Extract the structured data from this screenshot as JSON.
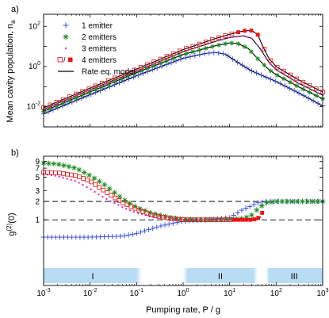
{
  "chart_data": [
    {
      "type": "scatter",
      "panel_label": "a)",
      "title": "",
      "xlabel": "",
      "ylabel": "Mean cavity population, n",
      "ylabel_subscript": "a",
      "xscale": "log",
      "yscale": "log",
      "xlim": [
        0.001,
        1000
      ],
      "ylim": [
        0.001,
        400
      ],
      "y_ticks": [
        0.01,
        1,
        100
      ],
      "y_tick_labels": [
        {
          "base": "10",
          "exp": "-2"
        },
        {
          "base": "10",
          "exp": "0"
        },
        {
          "base": "10",
          "exp": "2"
        }
      ],
      "legend_position": "top-left",
      "legend": [
        {
          "label": "1 emitter",
          "marker": "plus",
          "color": "#3344dd"
        },
        {
          "label": "2 emitters",
          "marker": "asterisk",
          "color": "#1f8a1f"
        },
        {
          "label": "3 emitters",
          "marker": "dot",
          "color": "#dd33cc"
        },
        {
          "label": "4 emitters",
          "marker": "square",
          "color": "#ee1111"
        },
        {
          "label": "Rate eq. model",
          "marker": "line",
          "color": "#000000"
        }
      ],
      "series": [
        {
          "marker": "plus",
          "color": "#3344dd",
          "x": [
            0.001,
            0.01,
            0.1,
            1,
            3,
            5,
            8,
            15,
            30,
            60,
            100,
            300,
            1000
          ],
          "y": [
            0.0045,
            0.04,
            0.35,
            2.6,
            4.5,
            5.0,
            4.2,
            1.6,
            0.6,
            0.3,
            0.18,
            0.05,
            0.011
          ]
        },
        {
          "marker": "asterisk",
          "color": "#1f8a1f",
          "x": [
            0.001,
            0.01,
            0.1,
            1,
            5,
            10,
            15,
            25,
            40,
            70,
            100,
            300,
            1000
          ],
          "y": [
            0.006,
            0.055,
            0.5,
            4,
            11,
            15,
            14,
            8,
            2.5,
            0.7,
            0.4,
            0.1,
            0.025
          ]
        },
        {
          "marker": "dot",
          "color": "#dd33cc",
          "x": [
            0.001,
            0.01,
            0.1,
            1,
            5,
            10,
            20,
            30,
            45,
            70,
            100,
            300,
            1000
          ],
          "y": [
            0.0075,
            0.07,
            0.6,
            5.5,
            18,
            28,
            34,
            25,
            8,
            1.6,
            0.7,
            0.15,
            0.038
          ]
        },
        {
          "marker": "square",
          "color": "#ee1111",
          "x": [
            0.001,
            0.01,
            0.1,
            1,
            5,
            10,
            20,
            30,
            40,
            50,
            70,
            100,
            300,
            1000
          ],
          "y": [
            0.009,
            0.085,
            0.75,
            7,
            25,
            40,
            60,
            62,
            40,
            12,
            2.5,
            1.0,
            0.22,
            0.055
          ]
        }
      ]
    },
    {
      "type": "scatter",
      "panel_label": "b)",
      "title": "",
      "xlabel": "Pumping rate, P / g",
      "ylabel": "g(2)(0)",
      "ylabel_parts": {
        "g": "g",
        "sup": "(2)",
        "tail": "(0)"
      },
      "xscale": "log",
      "yscale": "log",
      "xlim": [
        0.001,
        1000
      ],
      "ylim": [
        0.2,
        11
      ],
      "y_ticks": [
        1,
        2,
        3,
        5,
        7,
        9
      ],
      "x_ticks": [
        0.001,
        0.01,
        0.1,
        1,
        10,
        100,
        1000
      ],
      "x_tick_labels": [
        {
          "base": "10",
          "exp": "-3"
        },
        {
          "base": "10",
          "exp": "-2"
        },
        {
          "base": "10",
          "exp": "-1"
        },
        {
          "base": "10",
          "exp": "0"
        },
        {
          "base": "10",
          "exp": "1"
        },
        {
          "base": "10",
          "exp": "2"
        },
        {
          "base": "10",
          "exp": "3"
        }
      ],
      "reference_lines": [
        1,
        2
      ],
      "regions": [
        {
          "label": "I",
          "from": 0.001,
          "to": 0.13
        },
        {
          "label": "II",
          "from": 1.0,
          "to": 40
        },
        {
          "label": "III",
          "from": 60,
          "to": 1000
        }
      ],
      "series": [
        {
          "marker": "plus",
          "color": "#3344dd",
          "x": [
            0.001,
            0.01,
            0.05,
            0.1,
            0.3,
            1,
            3,
            10,
            20,
            30,
            40,
            60,
            100,
            1000
          ],
          "y": [
            0.52,
            0.52,
            0.54,
            0.6,
            0.78,
            0.95,
            1.0,
            1.08,
            1.5,
            1.7,
            1.9,
            2.0,
            2.0,
            2.0
          ]
        },
        {
          "marker": "asterisk",
          "color": "#1f8a1f",
          "x": [
            0.001,
            0.002,
            0.005,
            0.01,
            0.02,
            0.05,
            0.1,
            0.2,
            0.5,
            1,
            5,
            20,
            30,
            40,
            60,
            100,
            1000
          ],
          "y": [
            8.5,
            8.2,
            7.0,
            5.3,
            3.8,
            2.2,
            1.6,
            1.3,
            1.1,
            1.02,
            1.0,
            1.05,
            1.2,
            1.5,
            1.9,
            2.0,
            2.0
          ]
        },
        {
          "marker": "dot",
          "color": "#dd33cc",
          "x": [
            0.001,
            0.002,
            0.005,
            0.01,
            0.02,
            0.05,
            0.1,
            0.2,
            0.5,
            1,
            5,
            20,
            35,
            45
          ],
          "y": [
            5.6,
            5.2,
            4.3,
            3.2,
            2.3,
            1.6,
            1.3,
            1.15,
            1.05,
            1.0,
            1.0,
            1.0,
            1.0,
            1.1
          ]
        },
        {
          "marker": "square",
          "color": "#ee1111",
          "x": [
            0.001,
            0.002,
            0.005,
            0.01,
            0.02,
            0.05,
            0.1,
            0.2,
            0.5,
            1,
            5,
            10,
            20,
            30,
            40,
            50
          ],
          "y": [
            6.0,
            5.9,
            5.3,
            4.3,
            3.0,
            1.9,
            1.5,
            1.2,
            1.06,
            1.0,
            1.0,
            1.0,
            1.0,
            1.0,
            1.05,
            1.3
          ]
        }
      ]
    }
  ]
}
